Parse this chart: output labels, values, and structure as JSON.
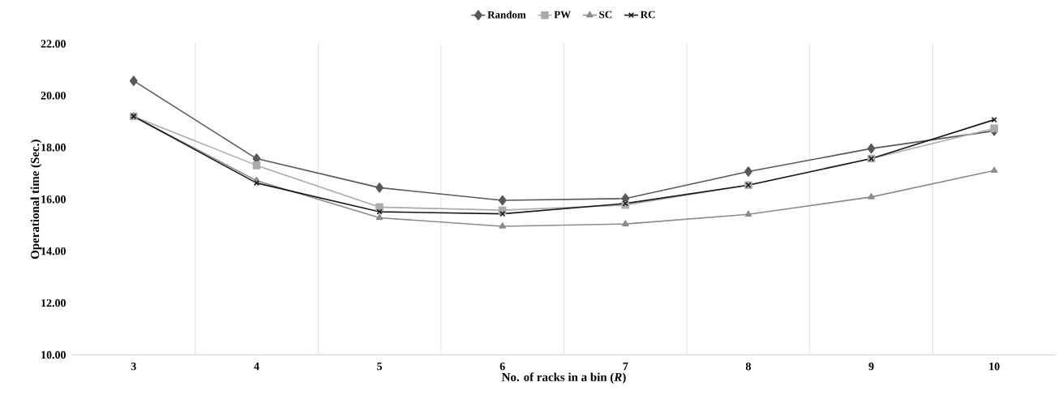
{
  "chart_data": {
    "type": "line",
    "xlabel": "No. of racks in a bin (*R*)",
    "ylabel": "Operational time (Sec.)",
    "categories": [
      "3",
      "4",
      "5",
      "6",
      "7",
      "8",
      "9",
      "10"
    ],
    "series": [
      {
        "name": "Random",
        "color": "#595959",
        "marker": "diamond",
        "values": [
          20.57,
          17.57,
          16.45,
          15.96,
          16.03,
          17.07,
          17.96,
          18.64
        ]
      },
      {
        "name": "PW",
        "color": "#ababab",
        "marker": "square",
        "values": [
          19.2,
          17.31,
          15.7,
          15.58,
          15.78,
          16.55,
          17.57,
          18.74
        ]
      },
      {
        "name": "SC",
        "color": "#8c8c8c",
        "marker": "triangle",
        "values": [
          19.2,
          16.72,
          15.29,
          14.96,
          15.05,
          15.42,
          16.09,
          17.11
        ]
      },
      {
        "name": "RC",
        "color": "#1a1a1a",
        "marker": "cross",
        "values": [
          19.2,
          16.63,
          15.52,
          15.44,
          15.84,
          16.55,
          17.57,
          19.07
        ]
      }
    ],
    "ylim": [
      10,
      22
    ],
    "yticks": [
      {
        "value": 10,
        "label": "10.00"
      },
      {
        "value": 12,
        "label": "12.00"
      },
      {
        "value": 14,
        "label": "14.00"
      },
      {
        "value": 16,
        "label": "16.00"
      },
      {
        "value": 18,
        "label": "18.00"
      },
      {
        "value": 20,
        "label": "20.00"
      },
      {
        "value": 22,
        "label": "22.00"
      }
    ],
    "grid": "x",
    "legend": "top",
    "line_style": "solid"
  }
}
